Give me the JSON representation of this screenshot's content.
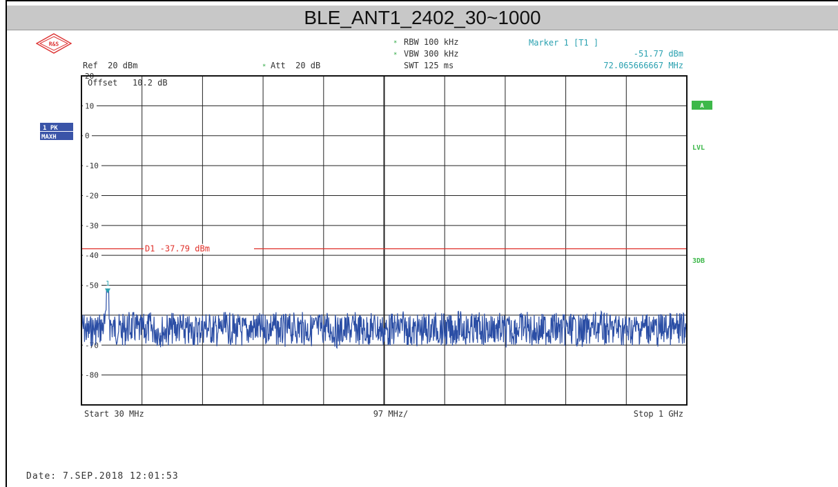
{
  "title": "BLE_ANT1_2402_30~1000",
  "logo_text": "R&S",
  "header": {
    "rbw": "RBW 100 kHz",
    "vbw": "VBW 300 kHz",
    "swt": "SWT 125 ms",
    "ref": "Ref  20 dBm",
    "att": "Att  20 dB",
    "marker_title": "Marker 1 [T1 ]",
    "marker_level": "-51.77 dBm",
    "marker_freq": "72.065666667 MHz",
    "offset": "Offset   10.2 dB"
  },
  "left_labels": {
    "trace": "1 PK",
    "mode": "MAXH"
  },
  "right_labels": {
    "a": "A",
    "lvl": "LVL",
    "db3": "3DB"
  },
  "display_line": {
    "label": "D1 -37.79 dBm",
    "value": -37.79
  },
  "footer": {
    "start": "Start 30 MHz",
    "span": "97 MHz/",
    "stop": "Stop 1 GHz"
  },
  "date": "Date: 7.SEP.2018  12:01:53",
  "colors": {
    "trace": "#2b4ea5",
    "limit": "#e0302a",
    "marker": "#2aa1b0",
    "status_green": "#3db84a"
  },
  "chart_data": {
    "type": "line",
    "x_unit": "MHz",
    "y_unit": "dBm",
    "xlim": [
      30,
      1000
    ],
    "ylim": [
      -90,
      20
    ],
    "y_ticks": [
      {
        "value": 20,
        "label": "20"
      },
      {
        "value": 10,
        "label": "10"
      },
      {
        "value": 0,
        "label": "0"
      },
      {
        "value": -10,
        "label": "-10"
      },
      {
        "value": -20,
        "label": "-20"
      },
      {
        "value": -30,
        "label": "-30"
      },
      {
        "value": -40,
        "label": "-40"
      },
      {
        "value": -50,
        "label": "-50"
      },
      {
        "value": -70,
        "label": "-70"
      },
      {
        "value": -80,
        "label": "-80"
      }
    ],
    "grid": true,
    "marker": {
      "label": "1",
      "x": 72.07,
      "y": -51.77
    },
    "series": [
      {
        "noise_floor_min": -66,
        "noise_floor_max": -58,
        "x": [
          30,
          41,
          52,
          63,
          72.07,
          80,
          95,
          110,
          125,
          140,
          155,
          170,
          185,
          200,
          215,
          230,
          245,
          260,
          275,
          290,
          305,
          320,
          335,
          350,
          365,
          380,
          395,
          410,
          425,
          440,
          455,
          470,
          485,
          500,
          515,
          530,
          545,
          560,
          575,
          590,
          605,
          620,
          635,
          650,
          665,
          680,
          695,
          710,
          725,
          740,
          755,
          770,
          785,
          800,
          815,
          830,
          845,
          860,
          875,
          890,
          905,
          920,
          935,
          950,
          965,
          980,
          1000
        ],
        "y": [
          -58.5,
          -60.2,
          -59.1,
          -58.8,
          -51.77,
          -58.9,
          -59.6,
          -58.4,
          -59.8,
          -58.7,
          -59.9,
          -59.2,
          -58.6,
          -60.1,
          -59.4,
          -58.3,
          -59.7,
          -58.9,
          -59.3,
          -60.0,
          -58.8,
          -59.5,
          -58.2,
          -59.9,
          -59.1,
          -58.7,
          -59.6,
          -59.0,
          -58.5,
          -60.2,
          -59.3,
          -58.9,
          -59.7,
          -58.6,
          -59.8,
          -59.2,
          -58.4,
          -60.0,
          -59.5,
          -58.8,
          -59.1,
          -59.9,
          -58.3,
          -59.6,
          -58.9,
          -59.4,
          -58.7,
          -60.1,
          -59.0,
          -58.5,
          -59.8,
          -59.3,
          -58.6,
          -59.7,
          -58.9,
          -60.0,
          -59.2,
          -58.4,
          -59.5,
          -58.8,
          -59.6,
          -59.1,
          -58.3,
          -59.9,
          -58.7,
          -59.4,
          -58.6
        ]
      }
    ]
  }
}
